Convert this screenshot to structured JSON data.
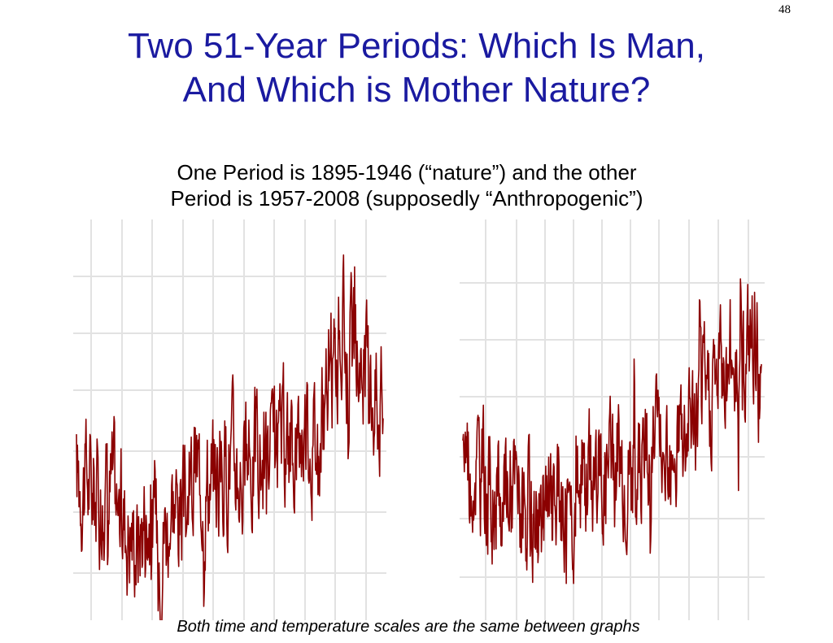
{
  "slide_number": "48",
  "title_line1": "Two 51-Year Periods:  Which Is Man,",
  "title_line2": "And Which is Mother Nature?",
  "subtitle_line1": "One Period is 1895-1946 (“nature”) and the other",
  "subtitle_line2": "Period is 1957-2008 (supposedly “Anthropogenic”)",
  "caption": "Both time and temperature scales are the same between graphs",
  "colors": {
    "title": "#1a1aa0",
    "series": "#8b0000",
    "grid": "#e2e2e2"
  },
  "chart_data": [
    {
      "type": "line",
      "title": "",
      "xlabel": "",
      "ylabel": "",
      "grid": true,
      "x": [
        0,
        2,
        4,
        6,
        8,
        10,
        12,
        14,
        16,
        18,
        20,
        22,
        24,
        26,
        28,
        30,
        32,
        34,
        36,
        38,
        40,
        42,
        44,
        46,
        48,
        50,
        51
      ],
      "series": [
        {
          "values": [
            0.41,
            0.39,
            0.33,
            0.37,
            0.25,
            0.19,
            0.3,
            0.19,
            0.33,
            0.25,
            0.43,
            0.41,
            0.41,
            0.48,
            0.4,
            0.49,
            0.42,
            0.5,
            0.51,
            0.6,
            0.54,
            0.67,
            0.93,
            0.81,
            0.79,
            0.68,
            0.65
          ]
        }
      ],
      "ylim": [
        -0.1,
        1.3
      ],
      "xlim": [
        0,
        51
      ]
    },
    {
      "type": "line",
      "title": "",
      "xlabel": "",
      "ylabel": "",
      "grid": true,
      "x": [
        0,
        2,
        4,
        6,
        8,
        10,
        12,
        14,
        16,
        18,
        20,
        22,
        24,
        26,
        28,
        30,
        32,
        34,
        36,
        38,
        40,
        42,
        44,
        46,
        48,
        50,
        51
      ],
      "series": [
        {
          "values": [
            0.52,
            0.47,
            0.39,
            0.33,
            0.39,
            0.29,
            0.26,
            0.24,
            0.31,
            0.27,
            0.37,
            0.42,
            0.41,
            0.48,
            0.41,
            0.42,
            0.56,
            0.54,
            0.61,
            0.56,
            0.63,
            0.71,
            0.79,
            0.85,
            0.8,
            0.88,
            0.62
          ]
        }
      ],
      "ylim": [
        -0.1,
        1.3
      ],
      "xlim": [
        0,
        51
      ]
    }
  ]
}
